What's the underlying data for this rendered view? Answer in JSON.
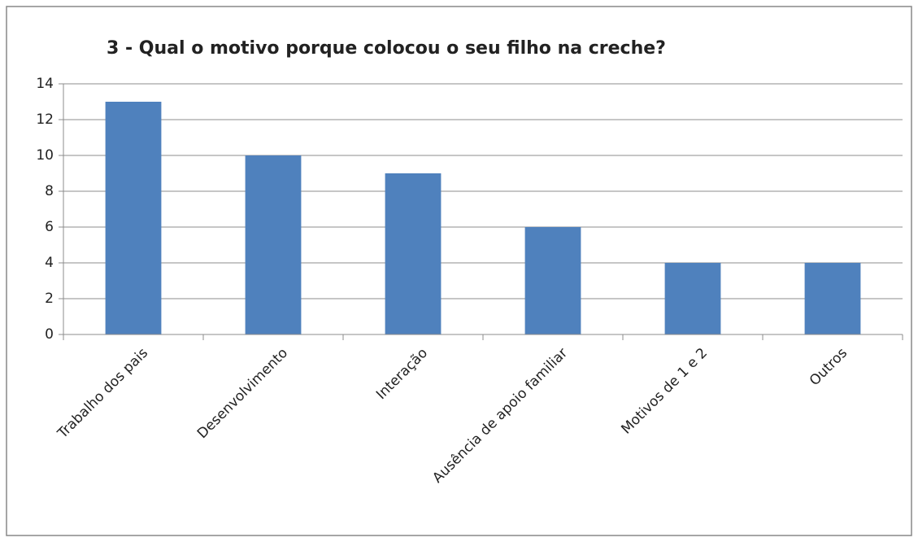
{
  "chart_data": {
    "type": "bar",
    "title": "3 - Qual o motivo porque colocou o seu filho na creche?",
    "categories": [
      "Trabalho dos pais",
      "Desenvolvimento",
      "Interação",
      "Ausência de apoio familiar",
      "Motivos de 1 e 2",
      "Outros"
    ],
    "values": [
      13,
      10,
      9,
      6,
      4,
      4
    ],
    "color": "#4f81bd",
    "ylim": [
      0,
      14
    ],
    "yticks": [
      0,
      2,
      4,
      6,
      8,
      10,
      12,
      14
    ],
    "grid": true
  }
}
